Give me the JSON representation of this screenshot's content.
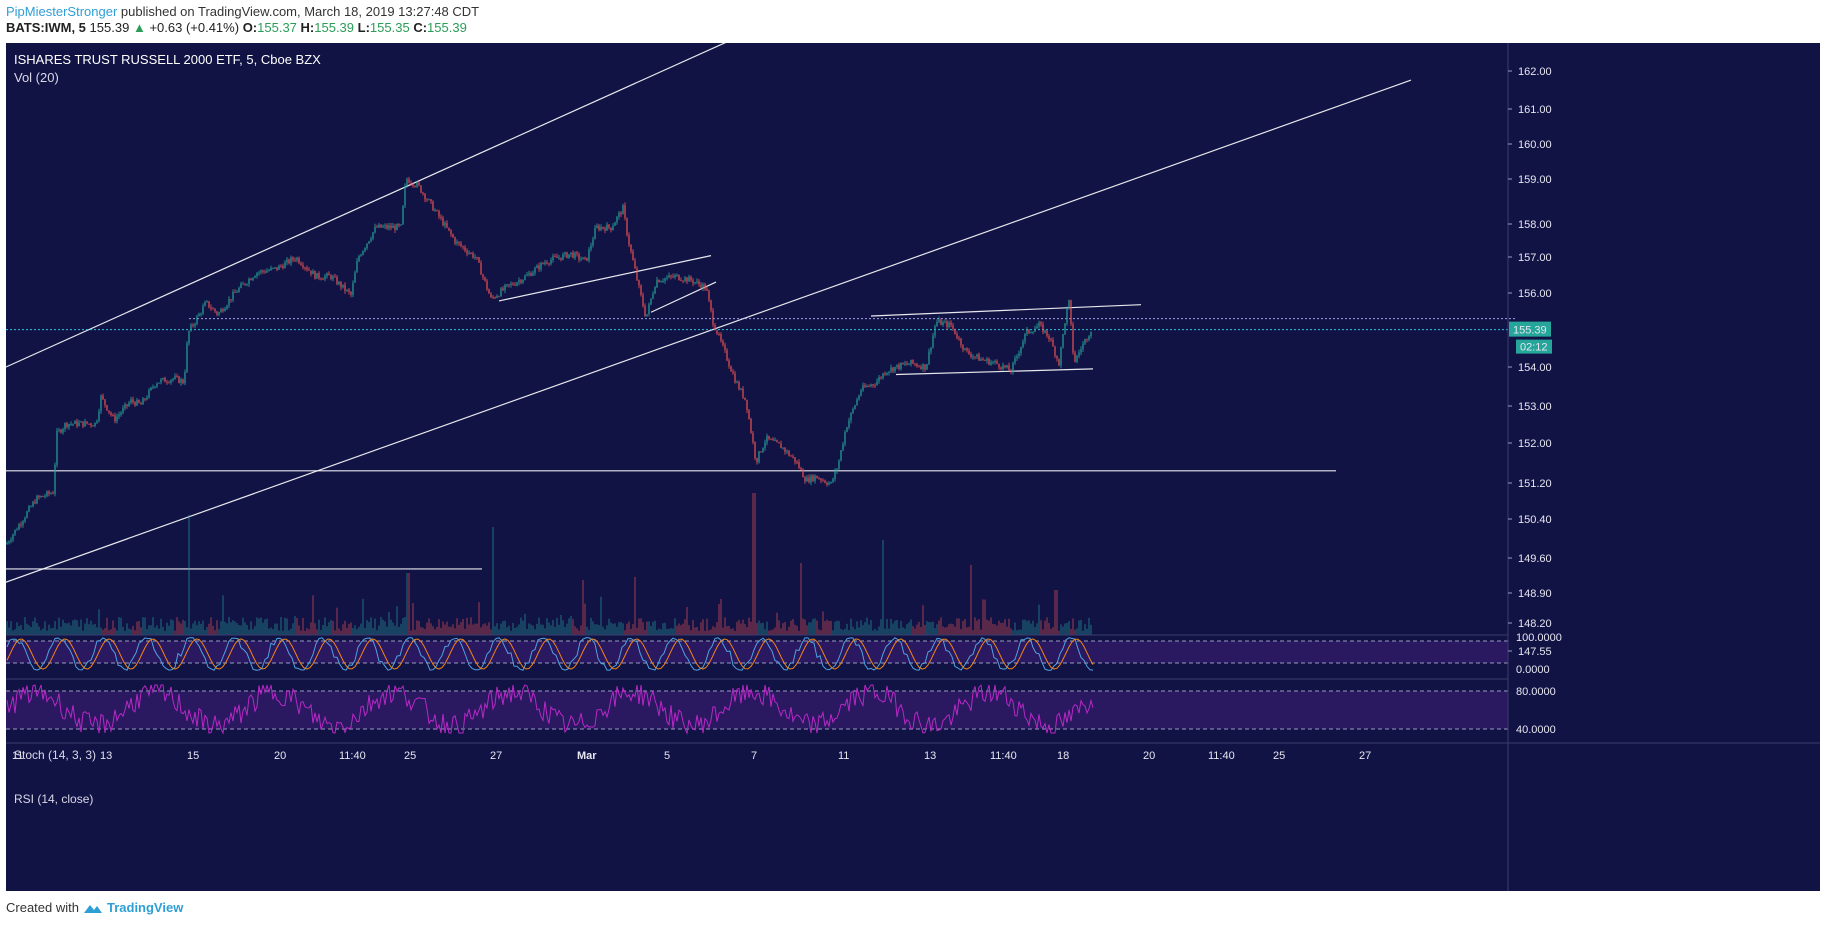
{
  "header": {
    "author": "PipMiesterStronger",
    "published_text": "published on TradingView.com, March 18, 2019 13:27:48 CDT"
  },
  "symbol_line": {
    "symbol": "BATS:IWM, 5",
    "last": "155.39",
    "change": "+0.63 (+0.41%)",
    "o_label": "O:",
    "o": "155.37",
    "h_label": "H:",
    "h": "155.39",
    "l_label": "L:",
    "l": "155.35",
    "c_label": "C:",
    "c": "155.39"
  },
  "chart_title": "ISHARES TRUST RUSSELL 2000 ETF, 5, Cboe BZX",
  "vol_label": "Vol (20)",
  "stoch_label": "Stoch (14, 3, 3)",
  "rsi_label": "RSI (14, close)",
  "footer": {
    "created_with": "Created with",
    "brand": "TradingView"
  },
  "colors": {
    "background": "#121345",
    "up": "#26a69a",
    "down": "#ef5350",
    "line": "#ffffff",
    "price_tag": "#26a69a",
    "stoch_band": "#2a1860",
    "stoch_k": "#4fa3e0",
    "stoch_d": "#f0861b",
    "rsi": "#b829c6"
  },
  "chart_data": {
    "type": "candlestick",
    "title": "ISHARES TRUST RUSSELL 2000 ETF, 5, Cboe BZX",
    "y_ticks": [
      "162.00",
      "161.00",
      "160.00",
      "159.00",
      "158.00",
      "157.00",
      "156.00",
      "154.00",
      "153.00",
      "152.00",
      "151.20",
      "150.40",
      "149.60",
      "148.90",
      "148.20",
      "147.55"
    ],
    "price_tag": "155.39",
    "countdown_tag": "02:12",
    "stoch_ticks": [
      "100.0000",
      "0.0000"
    ],
    "rsi_ticks": [
      "80.0000",
      "40.0000"
    ],
    "x_ticks": [
      "11",
      "13",
      "15",
      "20",
      "11:40",
      "25",
      "27",
      "Mar",
      "5",
      "7",
      "11",
      "13",
      "11:40",
      "18",
      "20",
      "11:40",
      "25",
      "27"
    ],
    "ylim": [
      147.3,
      162.4
    ],
    "price_path": [
      [
        0,
        149.7
      ],
      [
        30,
        150.9
      ],
      [
        48,
        151.1
      ],
      [
        50,
        152.6
      ],
      [
        60,
        152.9
      ],
      [
        90,
        152.9
      ],
      [
        95,
        153.6
      ],
      [
        108,
        153.0
      ],
      [
        125,
        153.5
      ],
      [
        135,
        153.4
      ],
      [
        150,
        154.0
      ],
      [
        168,
        154.1
      ],
      [
        178,
        154.0
      ],
      [
        182,
        155.3
      ],
      [
        200,
        156.1
      ],
      [
        212,
        155.8
      ],
      [
        230,
        156.4
      ],
      [
        250,
        156.9
      ],
      [
        270,
        157.0
      ],
      [
        290,
        157.3
      ],
      [
        310,
        156.8
      ],
      [
        325,
        156.8
      ],
      [
        345,
        156.3
      ],
      [
        352,
        157.3
      ],
      [
        370,
        158.1
      ],
      [
        395,
        158.1
      ],
      [
        400,
        159.4
      ],
      [
        412,
        159.2
      ],
      [
        425,
        158.7
      ],
      [
        450,
        157.7
      ],
      [
        470,
        157.3
      ],
      [
        485,
        156.2
      ],
      [
        500,
        156.5
      ],
      [
        520,
        156.8
      ],
      [
        540,
        157.2
      ],
      [
        565,
        157.4
      ],
      [
        580,
        157.2
      ],
      [
        590,
        158.1
      ],
      [
        605,
        158.1
      ],
      [
        617,
        158.6
      ],
      [
        622,
        157.8
      ],
      [
        632,
        156.6
      ],
      [
        640,
        155.7
      ],
      [
        650,
        156.7
      ],
      [
        670,
        156.8
      ],
      [
        685,
        156.7
      ],
      [
        700,
        156.5
      ],
      [
        707,
        155.6
      ],
      [
        720,
        154.7
      ],
      [
        730,
        154.0
      ],
      [
        740,
        153.5
      ],
      [
        750,
        151.9
      ],
      [
        760,
        152.5
      ],
      [
        775,
        152.3
      ],
      [
        790,
        151.9
      ],
      [
        800,
        151.4
      ],
      [
        810,
        151.5
      ],
      [
        825,
        151.3
      ],
      [
        832,
        151.8
      ],
      [
        840,
        152.8
      ],
      [
        855,
        153.8
      ],
      [
        870,
        154.0
      ],
      [
        880,
        154.3
      ],
      [
        890,
        154.4
      ],
      [
        905,
        154.5
      ],
      [
        920,
        154.4
      ],
      [
        930,
        155.6
      ],
      [
        945,
        155.5
      ],
      [
        960,
        154.8
      ],
      [
        975,
        154.6
      ],
      [
        990,
        154.5
      ],
      [
        1005,
        154.3
      ],
      [
        1020,
        155.3
      ],
      [
        1033,
        155.5
      ],
      [
        1043,
        155.2
      ],
      [
        1053,
        154.5
      ],
      [
        1060,
        155.8
      ],
      [
        1063,
        156.1
      ],
      [
        1068,
        154.5
      ],
      [
        1075,
        154.9
      ],
      [
        1085,
        155.4
      ]
    ],
    "drawings": {
      "channel_upper": [
        [
          0,
          154.4
        ],
        [
          720,
          163.0
        ]
      ],
      "channel_lower": [
        [
          0,
          148.7
        ],
        [
          1405,
          162.0
        ]
      ],
      "support_151": [
        [
          0,
          151.65
        ],
        [
          1330,
          151.65
        ]
      ],
      "support_149": [
        [
          0,
          149.05
        ],
        [
          476,
          149.05
        ]
      ],
      "wedge_lower": [
        [
          493,
          156.15
        ],
        [
          705,
          157.35
        ]
      ],
      "wedge_small": [
        [
          645,
          155.85
        ],
        [
          710,
          156.65
        ]
      ],
      "range_upper": [
        [
          865,
          155.75
        ],
        [
          1135,
          156.05
        ]
      ],
      "range_lower": [
        [
          890,
          154.2
        ],
        [
          1087,
          154.35
        ]
      ],
      "dotted_level": [
        [
          183,
          155.68
        ],
        [
          1510,
          155.68
        ]
      ],
      "dotted_last": [
        [
          0,
          155.39
        ],
        [
          1510,
          155.39
        ]
      ]
    }
  }
}
